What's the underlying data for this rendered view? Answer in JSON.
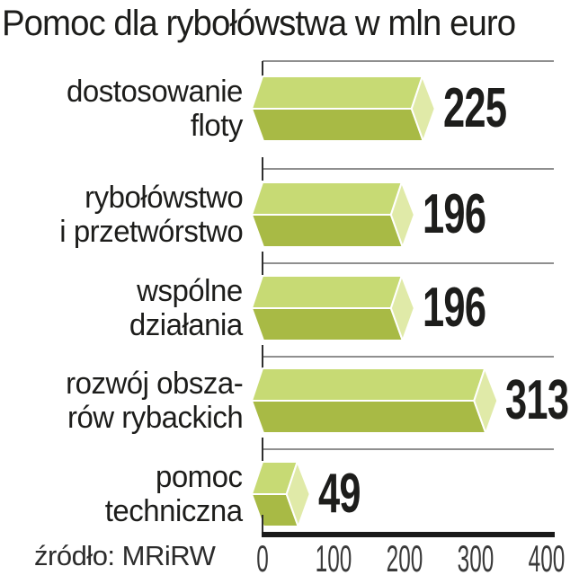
{
  "title": "Pomoc dla rybołówstwa w mln euro",
  "source": "źródło: MRiRW",
  "chart_data": {
    "type": "bar",
    "orientation": "horizontal",
    "style": "3d-prism-bars",
    "title": "Pomoc dla rybołówstwa w mln euro",
    "unit": "mln euro",
    "categories": [
      [
        "dostosowanie",
        "floty"
      ],
      [
        "rybołówstwo",
        "i przetwórstwo"
      ],
      [
        "wspólne",
        "działania"
      ],
      [
        "rozwój obsza-",
        "rów rybackich"
      ],
      [
        "pomoc",
        "techniczna"
      ]
    ],
    "values": [
      225,
      196,
      196,
      313,
      49
    ],
    "value_labels": [
      "225",
      "196",
      "196",
      "313",
      "49"
    ],
    "xlim": [
      0,
      400
    ],
    "x_ticks": [
      "0",
      "100",
      "200",
      "300",
      "400"
    ],
    "grid": true,
    "legend": false,
    "source": "źródło: MRiRW",
    "colors": {
      "bar_top": "#c7da74",
      "bar_bottom": "#a8ba45",
      "bar_cap": "#e0eaa8",
      "bar_seam": "#ffffff",
      "gridline": "#8f8f8f",
      "tick": "#2f2f2f",
      "axis": "#1a1a1a",
      "text": "#1d1d1b",
      "axis_text": "#3a3a3a"
    }
  }
}
